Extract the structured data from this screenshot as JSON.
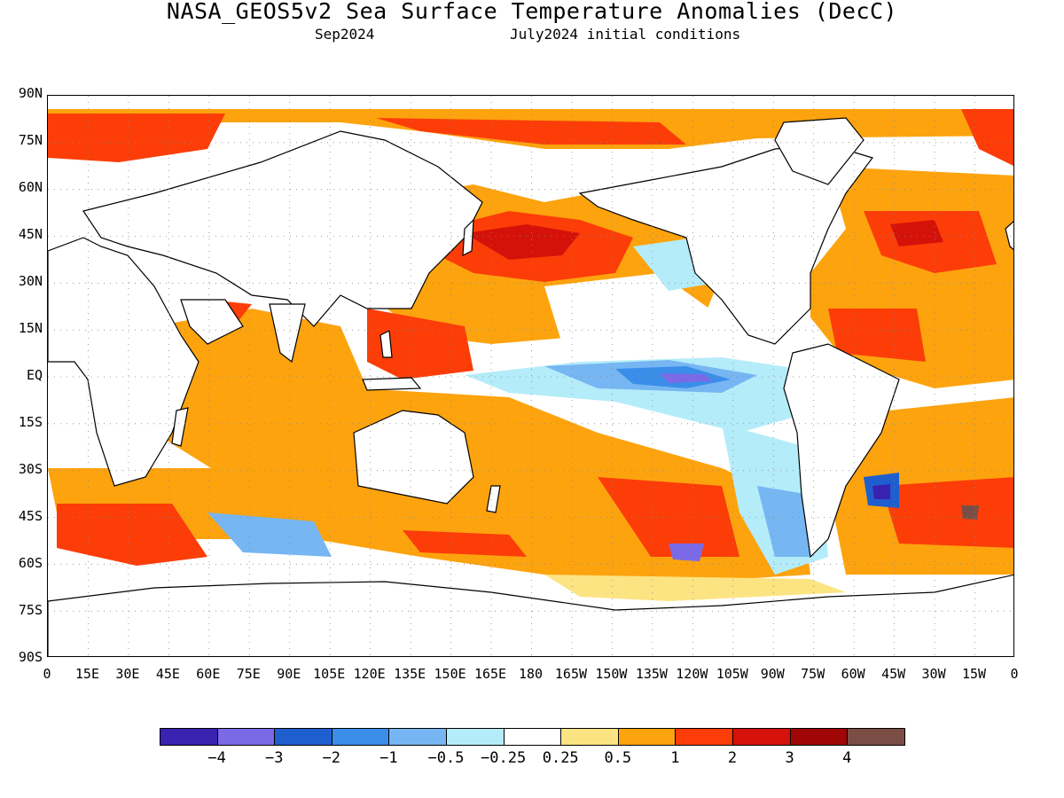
{
  "header": {
    "title": "NASA_GEOS5v2 Sea Surface Temperature Anomalies (DecC)",
    "valid_month": "Sep2024",
    "initial_conditions": "July2024 initial conditions"
  },
  "map": {
    "projection": "equirectangular",
    "lon_range": [
      0,
      360
    ],
    "lat_range": [
      -90,
      90
    ],
    "lat_ticks": [
      "90N",
      "75N",
      "60N",
      "45N",
      "30N",
      "15N",
      "EQ",
      "15S",
      "30S",
      "45S",
      "60S",
      "75S",
      "90S"
    ],
    "lon_ticks": [
      "0",
      "15E",
      "30E",
      "45E",
      "60E",
      "75E",
      "90E",
      "105E",
      "120E",
      "135E",
      "150E",
      "165E",
      "180",
      "165W",
      "150W",
      "135W",
      "120W",
      "105W",
      "90W",
      "75W",
      "60W",
      "45W",
      "30W",
      "15W",
      "0"
    ],
    "grid": "dotted",
    "land_color": "#ffffff",
    "coastline_color": "#000000"
  },
  "colorbar": {
    "colors": [
      "#3a22b0",
      "#7b6ae6",
      "#1f5ecf",
      "#3a8eea",
      "#76b6f2",
      "#b4ecfa",
      "#ffffff",
      "#fde483",
      "#fda30e",
      "#fc3d08",
      "#d51209",
      "#a00605",
      "#7a4e45"
    ],
    "labels": [
      "−4",
      "−3",
      "−2",
      "−1",
      "−0.5",
      "−0.25",
      "0.25",
      "0.5",
      "1",
      "2",
      "3",
      "4"
    ]
  }
}
